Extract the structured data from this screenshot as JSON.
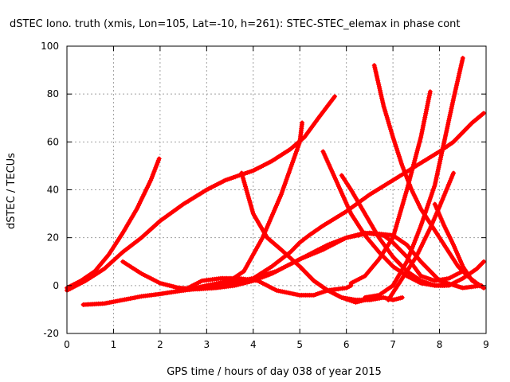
{
  "chart_data": {
    "type": "line",
    "title": "dSTEC Iono. truth (xmis, Lon=105, Lat=-10, h=261): STEC-STEC_elemax in phase cont",
    "xlabel": "GPS time / hours of day 038 of year 2015",
    "ylabel": "dSTEC  / TECUs",
    "xlim": [
      0,
      9
    ],
    "ylim": [
      -20,
      100
    ],
    "xticks": [
      0,
      1,
      2,
      3,
      4,
      5,
      6,
      7,
      8,
      9
    ],
    "yticks": [
      -20,
      0,
      20,
      40,
      60,
      80,
      100
    ],
    "grid": true,
    "series_color": "#ff0000",
    "marker": "plus",
    "series": [
      {
        "x": [
          0.0,
          0.3,
          0.6,
          0.9,
          1.2,
          1.5,
          1.8,
          1.98
        ],
        "y": [
          -1,
          2,
          6,
          13,
          22,
          32,
          44,
          53
        ]
      },
      {
        "x": [
          0.0,
          0.4,
          0.8,
          1.2,
          1.6,
          2.0,
          2.5,
          3.0,
          3.4,
          3.7,
          4.0,
          4.4,
          4.8,
          5.1,
          5.4,
          5.75
        ],
        "y": [
          -2,
          2,
          7,
          14,
          20,
          27,
          34,
          40,
          44,
          46,
          48,
          52,
          57,
          62,
          70,
          79
        ]
      },
      {
        "x": [
          0.35,
          0.8,
          1.2,
          1.6,
          2.0,
          2.5,
          3.0,
          3.5,
          4.0,
          4.5,
          5.0,
          5.5,
          6.0,
          6.5,
          7.0,
          7.3,
          7.6,
          8.0,
          8.5,
          8.9
        ],
        "y": [
          -8,
          -7.5,
          -6,
          -4.5,
          -3.5,
          -2,
          0,
          1,
          3,
          6,
          11,
          15,
          20,
          22,
          21,
          17,
          10,
          2,
          -1,
          0
        ]
      },
      {
        "x": [
          1.2,
          1.6,
          2.0,
          2.4,
          2.8,
          3.2,
          3.6,
          4.0,
          4.4,
          4.8,
          5.2,
          5.6,
          6.0,
          6.4,
          6.8,
          7.0,
          7.3,
          7.6,
          7.9,
          8.2,
          8.5
        ],
        "y": [
          10,
          5,
          1,
          -1,
          -1.5,
          -1,
          0,
          2,
          5,
          9,
          13,
          17,
          20,
          22,
          21,
          18,
          12,
          4,
          2,
          3,
          6
        ]
      },
      {
        "x": [
          2.5,
          2.9,
          3.3,
          3.7,
          4.1,
          4.5,
          5.0,
          5.3,
          5.6,
          6.0,
          6.1
        ],
        "y": [
          -2,
          2,
          3,
          3,
          2,
          -2,
          -4,
          -4,
          -2,
          -1,
          0
        ]
      },
      {
        "x": [
          2.5,
          3.0,
          3.5,
          4.0,
          4.4,
          4.8,
          5.0,
          5.2,
          5.5,
          6.0,
          6.5,
          7.0,
          7.5,
          8.0,
          8.3,
          8.5,
          8.7,
          8.95
        ],
        "y": [
          -2,
          -1,
          1,
          3,
          8,
          14,
          18,
          21,
          25,
          31,
          38,
          44,
          50,
          56,
          60,
          64,
          68,
          72
        ]
      },
      {
        "x": [
          3.0,
          3.5,
          3.8,
          4.2,
          4.6,
          5.0,
          5.05
        ],
        "y": [
          0,
          2,
          6,
          20,
          38,
          60,
          68
        ]
      },
      {
        "x": [
          3.75,
          4.0,
          4.3,
          4.6,
          5.0,
          5.3,
          5.6,
          5.9,
          6.2,
          6.4
        ],
        "y": [
          47,
          30,
          20,
          15,
          8,
          2,
          -2,
          -5,
          -7,
          -6
        ]
      },
      {
        "x": [
          5.0,
          5.3,
          5.6,
          5.9,
          6.2,
          6.5,
          6.8,
          7.0,
          7.2
        ],
        "y": [
          8,
          2,
          -2,
          -5,
          -6,
          -6,
          -5,
          -6,
          -5
        ]
      },
      {
        "x": [
          5.5,
          5.8,
          6.1,
          6.4,
          6.7,
          7.0,
          7.3,
          7.6,
          7.9,
          8.2,
          8.5,
          8.8,
          8.95
        ],
        "y": [
          56,
          43,
          30,
          21,
          14,
          8,
          4,
          1,
          0,
          0,
          3,
          7,
          10
        ]
      },
      {
        "x": [
          6.1,
          6.4,
          6.7,
          7.0,
          7.3,
          7.6,
          7.8
        ],
        "y": [
          1,
          4,
          11,
          20,
          40,
          62,
          81
        ]
      },
      {
        "x": [
          5.9,
          6.1,
          6.4,
          6.7,
          7.0,
          7.3,
          7.6,
          7.9,
          8.1
        ],
        "y": [
          46,
          40,
          30,
          20,
          12,
          6,
          2,
          0,
          0
        ]
      },
      {
        "x": [
          6.6,
          6.8,
          7.0,
          7.2,
          7.4,
          7.6,
          7.8,
          8.0,
          8.2,
          8.4,
          8.6,
          8.8,
          8.95
        ],
        "y": [
          92,
          75,
          62,
          50,
          40,
          32,
          26,
          20,
          14,
          8,
          4,
          1,
          -1
        ]
      },
      {
        "x": [
          6.4,
          6.7,
          7.0,
          7.3,
          7.6,
          7.9,
          8.1,
          8.3,
          8.5
        ],
        "y": [
          -5,
          -4,
          0,
          10,
          25,
          42,
          60,
          78,
          95
        ]
      },
      {
        "x": [
          6.9,
          7.2,
          7.5,
          7.8,
          8.0,
          8.3
        ],
        "y": [
          -6,
          3,
          12,
          24,
          33,
          47
        ]
      },
      {
        "x": [
          7.9,
          8.1,
          8.3,
          8.5,
          8.7,
          8.95
        ],
        "y": [
          34,
          25,
          17,
          8,
          2,
          -1
        ]
      }
    ]
  }
}
